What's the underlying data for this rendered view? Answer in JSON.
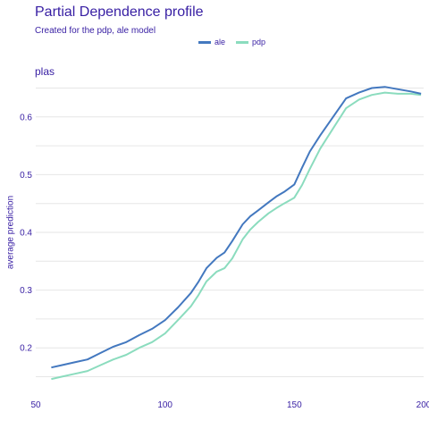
{
  "title": "Partial Dependence profile",
  "subtitle": "Created for the pdp, ale model",
  "chart_data": {
    "type": "line",
    "facet": "plas",
    "ylabel": "average prediction",
    "xlabel": "",
    "xlim": [
      50,
      200
    ],
    "ylim": [
      0.14,
      0.66
    ],
    "xticks": [
      50,
      100,
      150,
      200
    ],
    "yticks": [
      0.2,
      0.3,
      0.4,
      0.5,
      0.6
    ],
    "grid": "horizontal",
    "legend_position": "top",
    "series": [
      {
        "name": "ale",
        "color": "#4378bf",
        "x": [
          56,
          60,
          65,
          70,
          75,
          80,
          85,
          90,
          95,
          100,
          105,
          110,
          113,
          116,
          120,
          123,
          126,
          130,
          133,
          136,
          140,
          143,
          146,
          150,
          153,
          156,
          160,
          165,
          170,
          175,
          180,
          185,
          190,
          195,
          199
        ],
        "y": [
          0.166,
          0.17,
          0.175,
          0.18,
          0.191,
          0.202,
          0.21,
          0.222,
          0.233,
          0.248,
          0.27,
          0.295,
          0.315,
          0.338,
          0.356,
          0.365,
          0.385,
          0.414,
          0.428,
          0.438,
          0.452,
          0.462,
          0.47,
          0.483,
          0.512,
          0.54,
          0.568,
          0.6,
          0.632,
          0.642,
          0.65,
          0.652,
          0.648,
          0.644,
          0.64
        ]
      },
      {
        "name": "pdp",
        "color": "#8bdcbe",
        "x": [
          56,
          60,
          65,
          70,
          75,
          80,
          85,
          90,
          95,
          100,
          105,
          110,
          113,
          116,
          120,
          123,
          126,
          130,
          133,
          136,
          140,
          143,
          146,
          150,
          153,
          156,
          160,
          165,
          170,
          175,
          180,
          185,
          190,
          195,
          199
        ],
        "y": [
          0.146,
          0.15,
          0.155,
          0.16,
          0.17,
          0.18,
          0.188,
          0.2,
          0.21,
          0.225,
          0.248,
          0.272,
          0.292,
          0.315,
          0.332,
          0.338,
          0.355,
          0.388,
          0.405,
          0.418,
          0.433,
          0.442,
          0.45,
          0.46,
          0.482,
          0.51,
          0.545,
          0.58,
          0.615,
          0.63,
          0.638,
          0.642,
          0.64,
          0.64,
          0.638
        ]
      }
    ]
  }
}
